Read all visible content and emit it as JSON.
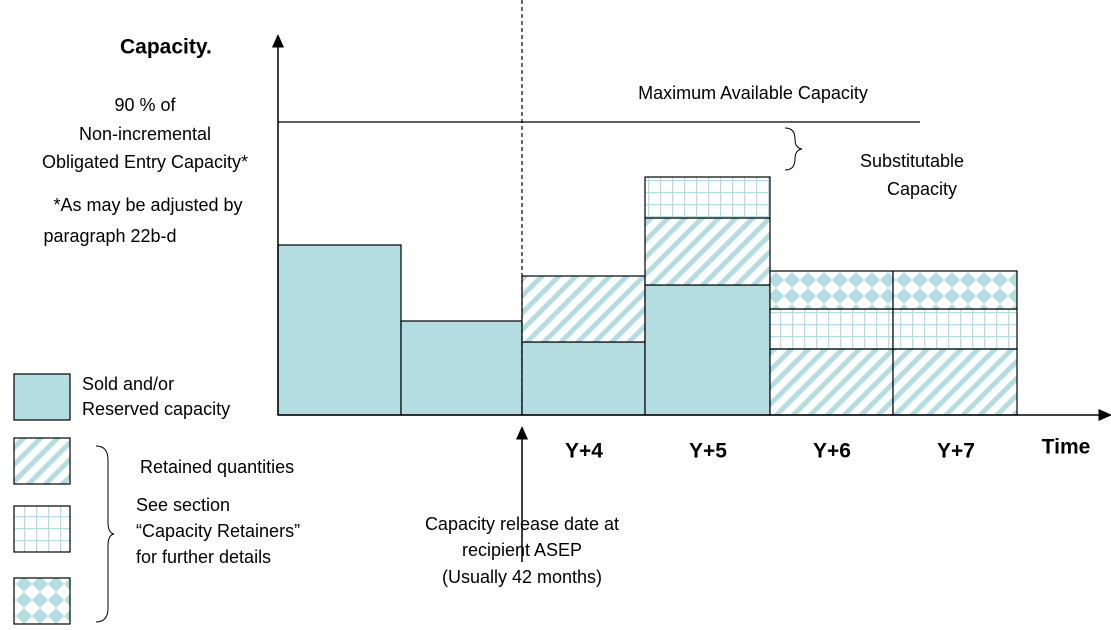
{
  "y_axis_label": "Capacity.",
  "left_note": [
    "90 % of",
    "Non-incremental",
    "Obligated Entry Capacity*",
    "*As may be adjusted by",
    "paragraph 22b-d"
  ],
  "max_capacity_label": "Maximum Available Capacity",
  "substitutable_label": [
    "Substitutable",
    "Capacity"
  ],
  "legend": {
    "sold": [
      "Sold and/or",
      "Reserved capacity"
    ],
    "retained": "Retained quantities",
    "see_section": [
      "See section",
      "“Capacity Retainers”",
      "for further details"
    ]
  },
  "periods": [
    "Y+4",
    "Y+5",
    "Y+6",
    "Y+7"
  ],
  "x_axis_label": "Time",
  "release_note": [
    "Capacity release date at",
    "recipient ASEP",
    "(Usually 42 months)"
  ]
}
